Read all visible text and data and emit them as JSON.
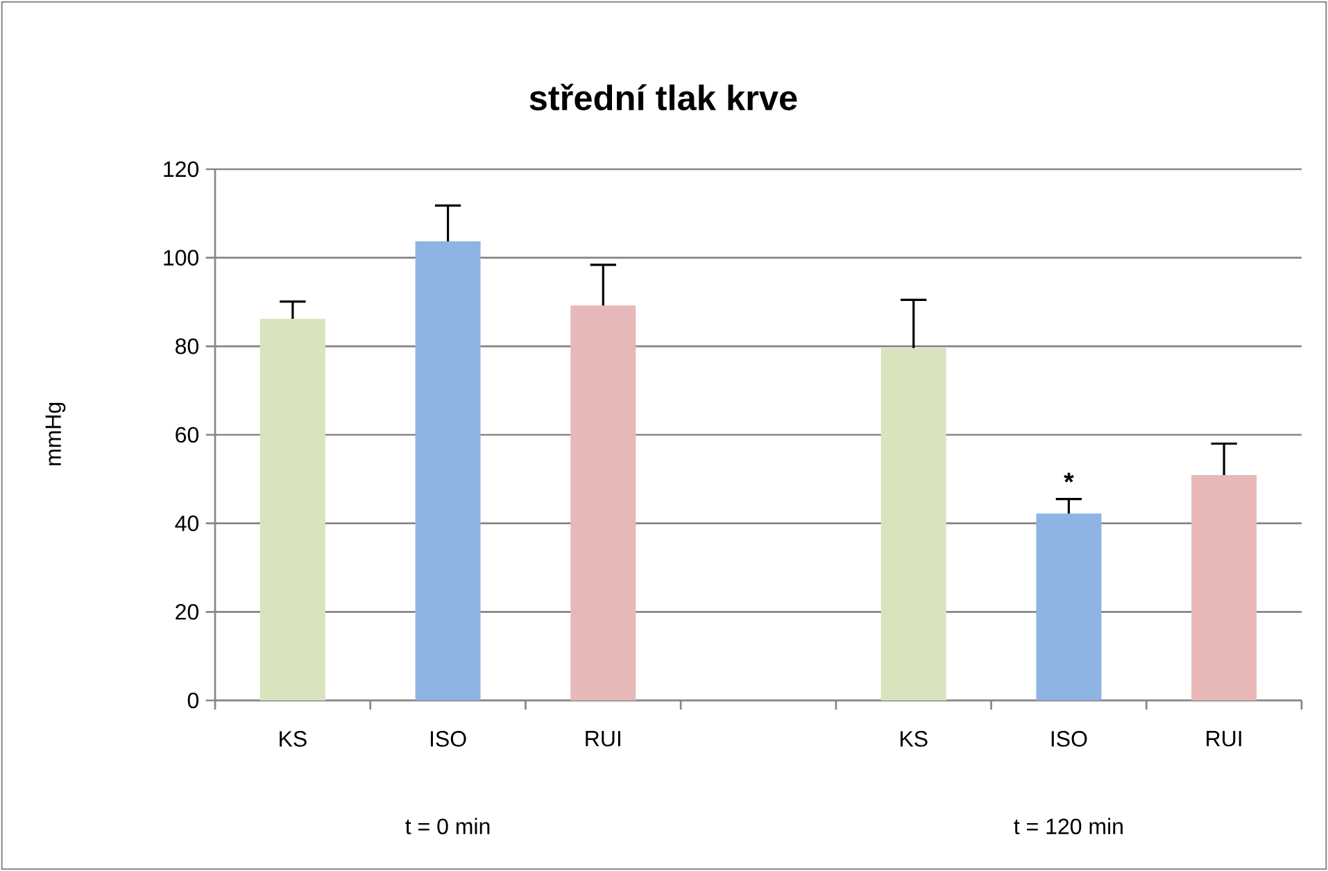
{
  "chart_data": {
    "type": "bar",
    "title": "střední tlak krve",
    "ylabel": "mmHg",
    "categories": [
      "KS",
      "ISO",
      "RUI",
      null,
      "KS",
      "ISO",
      "RUI"
    ],
    "values": [
      86.2,
      103.7,
      89.2,
      null,
      79.6,
      42.2,
      50.9
    ],
    "errors": [
      3.9,
      8.1,
      9.2,
      null,
      10.9,
      3.3,
      7.1
    ],
    "colors": [
      "#d7e4bd",
      "#8eb4e3",
      "#e6b9b8",
      null,
      "#d7e4bd",
      "#8eb4e3",
      "#e6b9b8"
    ],
    "ylim": [
      0,
      120
    ],
    "yticks": [
      0,
      20,
      40,
      60,
      80,
      100,
      120
    ],
    "grid": "y",
    "annotations": [
      "t = 0 min",
      "t = 120 min",
      "*"
    ]
  }
}
